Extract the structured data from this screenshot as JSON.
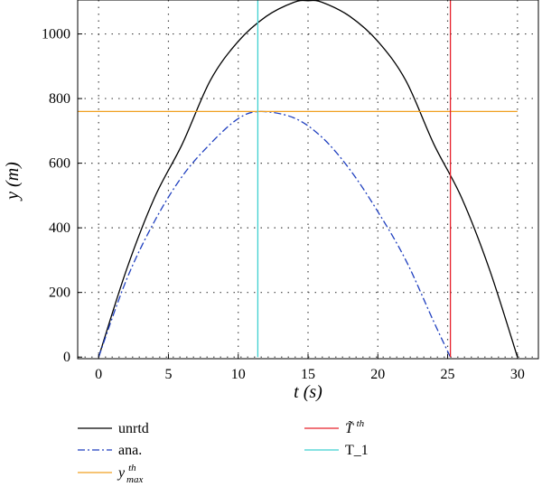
{
  "chart_data": {
    "type": "line",
    "xlabel": "t (s)",
    "ylabel": "y (m)",
    "xlim": [
      -1.5,
      31.5
    ],
    "ylim": [
      -5,
      1105
    ],
    "xticks": [
      0,
      5,
      10,
      15,
      20,
      25,
      30
    ],
    "yticks": [
      0,
      200,
      400,
      600,
      800,
      1000
    ],
    "grid": true,
    "legend_position": "below",
    "series": [
      {
        "name": "unrtd",
        "style": "solid",
        "color": "#000000",
        "x": [
          0,
          2,
          4,
          6,
          8,
          10,
          12,
          14,
          15,
          16,
          18,
          20,
          22,
          24,
          26,
          28,
          30
        ],
        "y": [
          0,
          271,
          493,
          660,
          856,
          977,
          1054,
          1098,
          1103,
          1098,
          1054,
          977,
          856,
          660,
          493,
          271,
          0
        ]
      },
      {
        "name": "ana.",
        "style": "dashdot",
        "color": "#1f3fbf",
        "x": [
          0,
          2,
          4,
          6,
          8,
          10,
          11.6,
          14,
          16,
          18,
          20,
          22,
          24,
          25.2
        ],
        "y": [
          0,
          240,
          420,
          560,
          660,
          738,
          760,
          740,
          680,
          580,
          450,
          300,
          110,
          0
        ]
      },
      {
        "name": "y_max^th",
        "legend_main": "y",
        "legend_sup": "th",
        "legend_sub": "max",
        "style": "solid",
        "color": "#f0a020",
        "x": [
          -1.5,
          30
        ],
        "y": [
          760,
          760
        ]
      },
      {
        "name": "T~^th",
        "legend_main": "T̃",
        "legend_sup": "th",
        "style": "solid",
        "color": "#e8202a",
        "x": [
          25.2,
          25.2
        ],
        "y": [
          0,
          1105
        ]
      },
      {
        "name": "T_1",
        "style": "solid",
        "color": "#3fd0d0",
        "x": [
          11.4,
          11.4
        ],
        "y": [
          0,
          1105
        ]
      }
    ],
    "legend": [
      {
        "label": "unrtd",
        "series": 0
      },
      {
        "label": "ana.",
        "series": 1
      },
      {
        "label": "y_max^th",
        "series": 2
      },
      {
        "label": "T~^th",
        "series": 3
      },
      {
        "label": "T_1",
        "series": 4
      }
    ]
  },
  "labels": {
    "xlabel_main": "t",
    "xlabel_unit": "(s)",
    "ylabel_main": "y",
    "ylabel_unit": "(m)",
    "legend_unrtd": "unrtd",
    "legend_ana": "ana.",
    "legend_ymax_main": "y",
    "legend_ymax_sup": "th",
    "legend_ymax_sub": "max",
    "legend_T_main": "T̃",
    "legend_T_sup": "th",
    "legend_T1": "T_1"
  }
}
